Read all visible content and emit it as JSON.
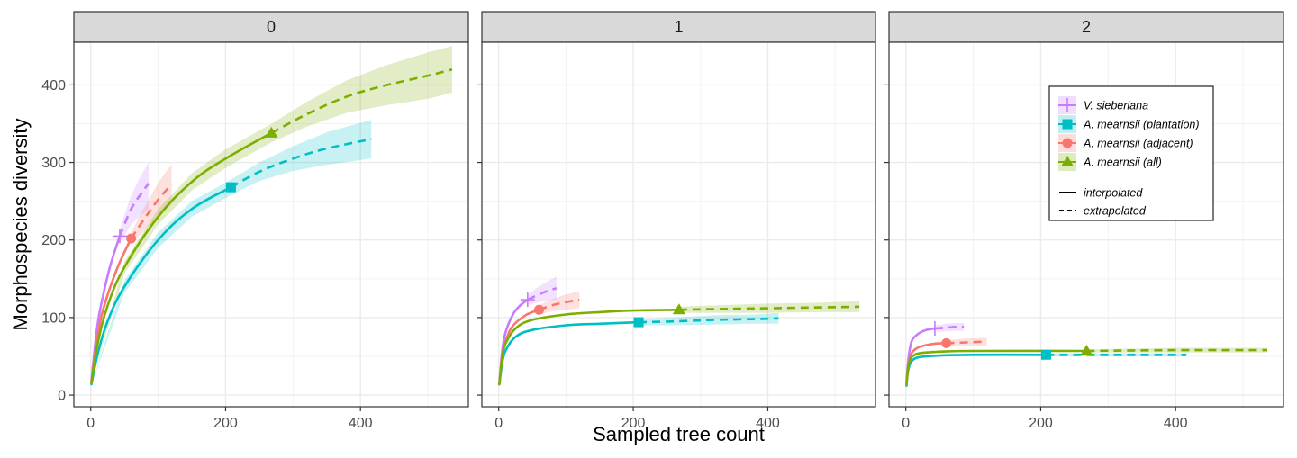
{
  "chart_data": {
    "type": "line",
    "xlabel": "Sampled tree count",
    "ylabel": "Morphospecies diversity",
    "xlim": [
      -25,
      560
    ],
    "ylim": [
      -15,
      455
    ],
    "x_ticks": [
      0,
      200,
      400
    ],
    "y_ticks": [
      0,
      100,
      200,
      300,
      400
    ],
    "grid": true,
    "legend_position": "top-right (inside third panel)",
    "line_type_legend": [
      {
        "style": "solid",
        "label": "interpolated"
      },
      {
        "style": "dashed",
        "label": "extrapolated"
      }
    ],
    "series_styles": [
      {
        "name": "V. sieberiana",
        "color": "#C77CFF",
        "marker": "plus"
      },
      {
        "name": "A. mearnsii (plantation)",
        "color": "#00BFC4",
        "marker": "square"
      },
      {
        "name": "A. mearnsii (adjacent)",
        "color": "#F8766D",
        "marker": "circle"
      },
      {
        "name": "A. mearnsii (all)",
        "color": "#7CAE00",
        "marker": "triangle"
      }
    ],
    "panels": [
      {
        "facet": "0",
        "series": [
          {
            "name": "V. sieberiana",
            "observed": [
              43,
              205
            ],
            "interpolated": [
              [
                1,
                18
              ],
              [
                10,
                90
              ],
              [
                20,
                135
              ],
              [
                30,
                170
              ],
              [
                43,
                205
              ]
            ],
            "extrapolated": [
              [
                43,
                205
              ],
              [
                60,
                240
              ],
              [
                75,
                260
              ],
              [
                86,
                273
              ]
            ],
            "band": [
              [
                43,
                196,
                214
              ],
              [
                60,
                220,
                258
              ],
              [
                75,
                232,
                284
              ],
              [
                86,
                240,
                300
              ]
            ]
          },
          {
            "name": "A. mearnsii (plantation)",
            "observed": [
              208,
              268
            ],
            "interpolated": [
              [
                1,
                14
              ],
              [
                10,
                52
              ],
              [
                25,
                95
              ],
              [
                50,
                140
              ],
              [
                100,
                200
              ],
              [
                150,
                240
              ],
              [
                208,
                268
              ]
            ],
            "extrapolated": [
              [
                208,
                268
              ],
              [
                250,
                288
              ],
              [
                300,
                305
              ],
              [
                350,
                318
              ],
              [
                416,
                330
              ]
            ],
            "band": [
              [
                1,
                14,
                14
              ],
              [
                50,
                132,
                148
              ],
              [
                100,
                190,
                210
              ],
              [
                150,
                230,
                250
              ],
              [
                208,
                258,
                278
              ],
              [
                250,
                276,
                300
              ],
              [
                300,
                289,
                321
              ],
              [
                350,
                297,
                339
              ],
              [
                416,
                305,
                355
              ]
            ]
          },
          {
            "name": "A. mearnsii (adjacent)",
            "observed": [
              60,
              202
            ],
            "interpolated": [
              [
                1,
                16
              ],
              [
                10,
                75
              ],
              [
                20,
                115
              ],
              [
                40,
                165
              ],
              [
                60,
                202
              ]
            ],
            "extrapolated": [
              [
                60,
                202
              ],
              [
                80,
                228
              ],
              [
                100,
                252
              ],
              [
                120,
                272
              ]
            ],
            "band": [
              [
                60,
                194,
                210
              ],
              [
                80,
                213,
                243
              ],
              [
                100,
                230,
                274
              ],
              [
                120,
                246,
                298
              ]
            ]
          },
          {
            "name": "A. mearnsii (all)",
            "observed": [
              268,
              338
            ],
            "interpolated": [
              [
                1,
                16
              ],
              [
                10,
                65
              ],
              [
                25,
                115
              ],
              [
                50,
                165
              ],
              [
                100,
                230
              ],
              [
                150,
                275
              ],
              [
                200,
                305
              ],
              [
                268,
                338
              ]
            ],
            "extrapolated": [
              [
                268,
                338
              ],
              [
                320,
                362
              ],
              [
                380,
                385
              ],
              [
                440,
                400
              ],
              [
                500,
                412
              ],
              [
                536,
                420
              ]
            ],
            "band": [
              [
                1,
                16,
                16
              ],
              [
                50,
                157,
                173
              ],
              [
                100,
                220,
                240
              ],
              [
                150,
                264,
                286
              ],
              [
                200,
                293,
                317
              ],
              [
                268,
                326,
                350
              ],
              [
                320,
                346,
                378
              ],
              [
                380,
                364,
                406
              ],
              [
                440,
                374,
                426
              ],
              [
                500,
                382,
                442
              ],
              [
                536,
                390,
                450
              ]
            ]
          }
        ]
      },
      {
        "facet": "1",
        "series": [
          {
            "name": "V. sieberiana",
            "observed": [
              43,
              123
            ],
            "interpolated": [
              [
                1,
                14
              ],
              [
                5,
                55
              ],
              [
                10,
                80
              ],
              [
                20,
                102
              ],
              [
                30,
                114
              ],
              [
                43,
                123
              ]
            ],
            "extrapolated": [
              [
                43,
                123
              ],
              [
                60,
                130
              ],
              [
                75,
                135
              ],
              [
                86,
                138
              ]
            ],
            "band": [
              [
                43,
                116,
                130
              ],
              [
                60,
                120,
                140
              ],
              [
                75,
                122,
                148
              ],
              [
                86,
                123,
                153
              ]
            ]
          },
          {
            "name": "A. mearnsii (plantation)",
            "observed": [
              208,
              94
            ],
            "interpolated": [
              [
                1,
                14
              ],
              [
                5,
                40
              ],
              [
                10,
                57
              ],
              [
                25,
                75
              ],
              [
                50,
                84
              ],
              [
                100,
                90
              ],
              [
                150,
                92
              ],
              [
                208,
                94
              ]
            ],
            "extrapolated": [
              [
                208,
                94
              ],
              [
                260,
                95
              ],
              [
                320,
                97
              ],
              [
                380,
                98
              ],
              [
                416,
                99
              ]
            ],
            "band": [
              [
                208,
                90,
                98
              ],
              [
                260,
                90,
                100
              ],
              [
                320,
                91,
                103
              ],
              [
                380,
                92,
                104
              ],
              [
                416,
                92,
                106
              ]
            ]
          },
          {
            "name": "A. mearnsii (adjacent)",
            "observed": [
              60,
              110
            ],
            "interpolated": [
              [
                1,
                14
              ],
              [
                5,
                48
              ],
              [
                10,
                68
              ],
              [
                20,
                88
              ],
              [
                40,
                103
              ],
              [
                60,
                110
              ]
            ],
            "extrapolated": [
              [
                60,
                110
              ],
              [
                80,
                116
              ],
              [
                100,
                120
              ],
              [
                120,
                123
              ]
            ],
            "band": [
              [
                60,
                104,
                116
              ],
              [
                80,
                108,
                124
              ],
              [
                100,
                110,
                130
              ],
              [
                120,
                112,
                134
              ]
            ]
          },
          {
            "name": "A. mearnsii (all)",
            "observed": [
              268,
              110
            ],
            "interpolated": [
              [
                1,
                14
              ],
              [
                5,
                48
              ],
              [
                10,
                66
              ],
              [
                25,
                86
              ],
              [
                50,
                97
              ],
              [
                100,
                104
              ],
              [
                150,
                107
              ],
              [
                200,
                109
              ],
              [
                268,
                110
              ]
            ],
            "extrapolated": [
              [
                268,
                110
              ],
              [
                330,
                111
              ],
              [
                400,
                112
              ],
              [
                470,
                113
              ],
              [
                536,
                114
              ]
            ],
            "band": [
              [
                268,
                106,
                114
              ],
              [
                330,
                106,
                116
              ],
              [
                400,
                106,
                118
              ],
              [
                470,
                107,
                119
              ],
              [
                536,
                107,
                121
              ]
            ]
          }
        ]
      },
      {
        "facet": "2",
        "series": [
          {
            "name": "V. sieberiana",
            "observed": [
              43,
              86
            ],
            "interpolated": [
              [
                1,
                14
              ],
              [
                3,
                40
              ],
              [
                6,
                60
              ],
              [
                10,
                72
              ],
              [
                20,
                80
              ],
              [
                30,
                84
              ],
              [
                43,
                86
              ]
            ],
            "extrapolated": [
              [
                43,
                86
              ],
              [
                60,
                87
              ],
              [
                75,
                88
              ],
              [
                86,
                88
              ]
            ],
            "band": [
              [
                43,
                82,
                90
              ],
              [
                60,
                82,
                92
              ],
              [
                75,
                83,
                93
              ],
              [
                86,
                83,
                93
              ]
            ]
          },
          {
            "name": "A. mearnsii (plantation)",
            "observed": [
              208,
              52
            ],
            "interpolated": [
              [
                1,
                12
              ],
              [
                3,
                30
              ],
              [
                6,
                40
              ],
              [
                10,
                45
              ],
              [
                20,
                49
              ],
              [
                50,
                51
              ],
              [
                100,
                52
              ],
              [
                208,
                52
              ]
            ],
            "extrapolated": [
              [
                208,
                52
              ],
              [
                300,
                52
              ],
              [
                416,
                52
              ]
            ],
            "band": [
              [
                208,
                50,
                54
              ],
              [
                300,
                50,
                54
              ],
              [
                416,
                50,
                54
              ]
            ]
          },
          {
            "name": "A. mearnsii (adjacent)",
            "observed": [
              60,
              67
            ],
            "interpolated": [
              [
                1,
                14
              ],
              [
                3,
                34
              ],
              [
                6,
                48
              ],
              [
                10,
                56
              ],
              [
                20,
                62
              ],
              [
                40,
                66
              ],
              [
                60,
                67
              ]
            ],
            "extrapolated": [
              [
                60,
                67
              ],
              [
                90,
                68
              ],
              [
                120,
                69
              ]
            ],
            "band": [
              [
                60,
                63,
                71
              ],
              [
                90,
                64,
                73
              ],
              [
                120,
                64,
                74
              ]
            ]
          },
          {
            "name": "A. mearnsii (all)",
            "observed": [
              268,
              57
            ],
            "interpolated": [
              [
                1,
                14
              ],
              [
                3,
                34
              ],
              [
                6,
                45
              ],
              [
                10,
                50
              ],
              [
                20,
                54
              ],
              [
                50,
                56
              ],
              [
                100,
                57
              ],
              [
                268,
                57
              ]
            ],
            "extrapolated": [
              [
                268,
                57
              ],
              [
                400,
                58
              ],
              [
                536,
                58
              ]
            ],
            "band": [
              [
                268,
                55,
                59
              ],
              [
                400,
                55,
                61
              ],
              [
                536,
                55,
                61
              ]
            ]
          }
        ]
      }
    ]
  }
}
